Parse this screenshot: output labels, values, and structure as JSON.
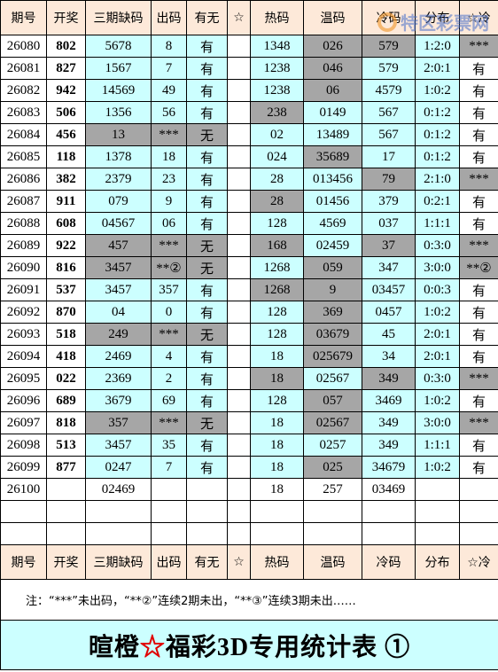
{
  "header": [
    "期号",
    "开奖",
    "三期缺码",
    "出码",
    "有无",
    "☆",
    "热码",
    "温码",
    "冷码",
    "分布",
    "☆冷"
  ],
  "rows": [
    [
      "26080",
      "802",
      "5678",
      "8",
      "有",
      null,
      "1348",
      "026",
      "579",
      "1:2:0",
      "***"
    ],
    [
      "26081",
      "827",
      "1567",
      "7",
      "有",
      null,
      "1238",
      "046",
      "579",
      "2:0:1",
      "有"
    ],
    [
      "26082",
      "942",
      "14569",
      "49",
      "有",
      null,
      "1238",
      "06",
      "4579",
      "1:0:2",
      "有"
    ],
    [
      "26083",
      "506",
      "1356",
      "56",
      "有",
      null,
      "238",
      "0149",
      "567",
      "0:1:2",
      "有"
    ],
    [
      "26084",
      "456",
      "13",
      "***",
      "无",
      null,
      "02",
      "13489",
      "567",
      "0:1:2",
      "有"
    ],
    [
      "26085",
      "118",
      "1378",
      "18",
      "有",
      null,
      "024",
      "35689",
      "17",
      "0:1:2",
      "有"
    ],
    [
      "26086",
      "382",
      "2379",
      "23",
      "有",
      null,
      "28",
      "013456",
      "79",
      "2:1:0",
      "***"
    ],
    [
      "26087",
      "911",
      "079",
      "9",
      "有",
      null,
      "28",
      "01456",
      "379",
      "0:2:1",
      "有"
    ],
    [
      "26088",
      "608",
      "04567",
      "06",
      "有",
      null,
      "128",
      "4569",
      "037",
      "1:1:1",
      "有"
    ],
    [
      "26089",
      "922",
      "457",
      "***",
      "无",
      null,
      "168",
      "02459",
      "37",
      "0:3:0",
      "***"
    ],
    [
      "26090",
      "816",
      "3457",
      "**②",
      "无",
      null,
      "1268",
      "059",
      "347",
      "3:0:0",
      "**②"
    ],
    [
      "26091",
      "537",
      "3457",
      "357",
      "有",
      null,
      "1268",
      "9",
      "03457",
      "0:0:3",
      "有"
    ],
    [
      "26092",
      "870",
      "04",
      "0",
      "有",
      null,
      "128",
      "369",
      "0457",
      "1:0:2",
      "有"
    ],
    [
      "26093",
      "518",
      "249",
      "***",
      "无",
      null,
      "128",
      "03679",
      "45",
      "2:0:1",
      "有"
    ],
    [
      "26094",
      "418",
      "2469",
      "4",
      "有",
      null,
      "18",
      "025679",
      "34",
      "2:0:1",
      "有"
    ],
    [
      "26095",
      "022",
      "2369",
      "2",
      "有",
      null,
      "18",
      "02567",
      "349",
      "0:3:0",
      "***"
    ],
    [
      "26096",
      "689",
      "3679",
      "69",
      "有",
      null,
      "128",
      "057",
      "3469",
      "1:0:2",
      "有"
    ],
    [
      "26097",
      "818",
      "357",
      "***",
      "无",
      null,
      "18",
      "02567",
      "349",
      "3:0:0",
      "***"
    ],
    [
      "26098",
      "513",
      "3457",
      "35",
      "有",
      null,
      "18",
      "0257",
      "349",
      "1:1:1",
      "有"
    ],
    [
      "26099",
      "877",
      "0247",
      "7",
      "有",
      null,
      "18",
      "025",
      "34679",
      "1:0:2",
      "有"
    ],
    [
      "26100",
      null,
      "02469",
      null,
      null,
      null,
      "18",
      "257",
      "03469",
      null,
      null
    ]
  ],
  "footer_header": [
    "期号",
    "开奖",
    "三期缺码",
    "出码",
    "有无",
    "☆",
    "热码",
    "温码",
    "冷码",
    "分布",
    "☆冷"
  ],
  "note": "注：“***”未出码，“**②”连续2期未出，“**③”连续3期未出……",
  "title": [
    "暄橙",
    "☆",
    "福彩3D专用统计表 ①"
  ],
  "watermark": "特区彩票网"
}
